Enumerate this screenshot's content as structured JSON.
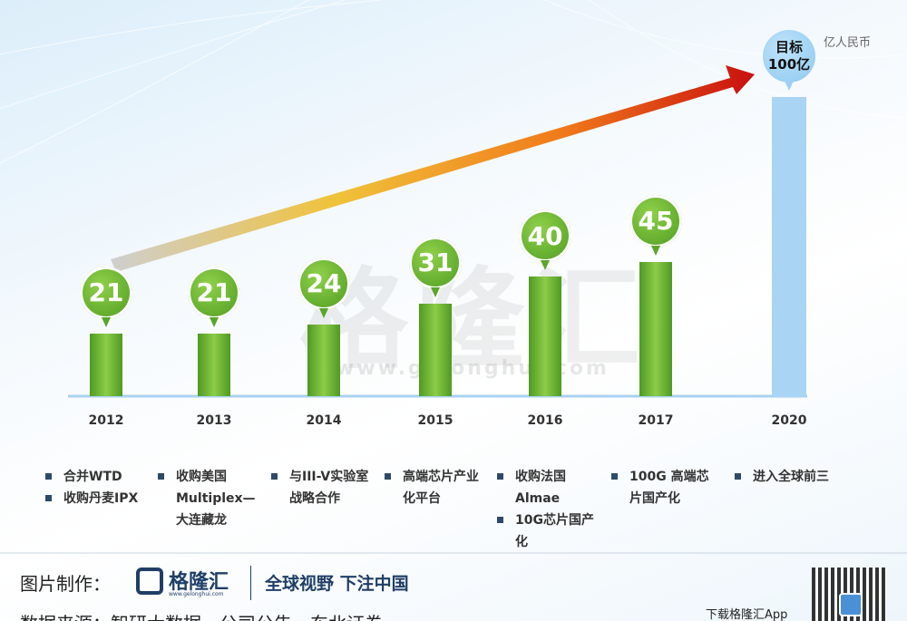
{
  "chart_data": {
    "type": "bar",
    "unit": "亿人民币",
    "categories": [
      "2012",
      "2013",
      "2014",
      "2015",
      "2016",
      "2017",
      "2020"
    ],
    "values": [
      21,
      21,
      24,
      31,
      40,
      45,
      100
    ],
    "value_labels": [
      "21",
      "21",
      "24",
      "31",
      "40",
      "45",
      "目标\n100亿"
    ],
    "colors": [
      "#5fa52c",
      "#5fa52c",
      "#5fa52c",
      "#5fa52c",
      "#5fa52c",
      "#5fa52c",
      "#a9d4f3"
    ],
    "notes": [
      [
        "合并WTD",
        "收购丹麦IPX"
      ],
      [
        "收购美国Multiplex—大连藏龙"
      ],
      [
        "与III-V实验室战略合作"
      ],
      [
        "高端芯片产业化平台"
      ],
      [
        "收购法国Almae",
        "10G芯片国产化"
      ],
      [
        "100G 高端芯片国产化"
      ],
      [
        "进入全球前三"
      ]
    ]
  },
  "watermark": {
    "name": "格隆汇",
    "url": "www.gelonghui.com"
  },
  "footer": {
    "made_by": "图片制作：",
    "logo": "格隆汇",
    "logo_url": "www.gelonghui.com",
    "slogan": "全球视野 下注中国",
    "source": "数据来源：智研大数据，公司公告，东北证券",
    "download": "下载格隆汇App"
  }
}
